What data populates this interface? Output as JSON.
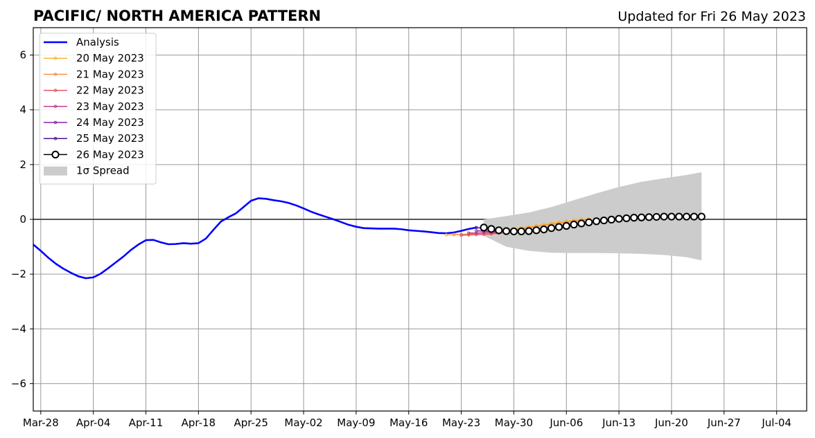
{
  "chart_data": {
    "type": "line",
    "title": "PACIFIC/ NORTH AMERICA PATTERN",
    "subtitle": "Updated for Fri 26 May 2023",
    "xlabel": "",
    "ylabel": "",
    "xlim": [
      "2023-03-27",
      "2023-07-08"
    ],
    "ylim": [
      -7,
      7
    ],
    "x_ticks": [
      "Mar-28",
      "Apr-04",
      "Apr-11",
      "Apr-18",
      "Apr-25",
      "May-02",
      "May-09",
      "May-16",
      "May-23",
      "May-30",
      "Jun-06",
      "Jun-13",
      "Jun-20",
      "Jun-27",
      "Jul-04"
    ],
    "y_ticks": [
      6,
      4,
      2,
      0,
      -2,
      -4,
      -6
    ],
    "y_tick_labels": [
      "6",
      "4",
      "2",
      "0",
      "−2",
      "−4",
      "−6"
    ],
    "grid": true,
    "legend_position": "upper-left",
    "colors": {
      "analysis": "#0000ff",
      "spread": "#cccccc",
      "grid": "#999999",
      "zero_line": "#555555"
    },
    "analysis": {
      "name": "Analysis",
      "x": [
        "2023-03-27",
        "2023-03-28",
        "2023-03-29",
        "2023-03-30",
        "2023-03-31",
        "2023-04-01",
        "2023-04-02",
        "2023-04-03",
        "2023-04-04",
        "2023-04-05",
        "2023-04-06",
        "2023-04-07",
        "2023-04-08",
        "2023-04-09",
        "2023-04-10",
        "2023-04-11",
        "2023-04-12",
        "2023-04-13",
        "2023-04-14",
        "2023-04-15",
        "2023-04-16",
        "2023-04-17",
        "2023-04-18",
        "2023-04-19",
        "2023-04-20",
        "2023-04-21",
        "2023-04-22",
        "2023-04-23",
        "2023-04-24",
        "2023-04-25",
        "2023-04-26",
        "2023-04-27",
        "2023-04-28",
        "2023-04-29",
        "2023-04-30",
        "2023-05-01",
        "2023-05-02",
        "2023-05-03",
        "2023-05-04",
        "2023-05-05",
        "2023-05-06",
        "2023-05-07",
        "2023-05-08",
        "2023-05-09",
        "2023-05-10",
        "2023-05-11",
        "2023-05-12",
        "2023-05-13",
        "2023-05-14",
        "2023-05-15",
        "2023-05-16",
        "2023-05-17",
        "2023-05-18",
        "2023-05-19",
        "2023-05-20",
        "2023-05-21",
        "2023-05-22",
        "2023-05-23",
        "2023-05-24",
        "2023-05-25"
      ],
      "y": [
        -0.92,
        -1.15,
        -1.4,
        -1.62,
        -1.8,
        -1.95,
        -2.08,
        -2.15,
        -2.12,
        -1.98,
        -1.78,
        -1.57,
        -1.36,
        -1.12,
        -0.92,
        -0.76,
        -0.75,
        -0.84,
        -0.91,
        -0.9,
        -0.87,
        -0.89,
        -0.87,
        -0.7,
        -0.38,
        -0.08,
        0.08,
        0.22,
        0.45,
        0.68,
        0.77,
        0.75,
        0.7,
        0.66,
        0.6,
        0.51,
        0.4,
        0.28,
        0.18,
        0.09,
        0.0,
        -0.1,
        -0.2,
        -0.27,
        -0.32,
        -0.33,
        -0.34,
        -0.34,
        -0.34,
        -0.36,
        -0.4,
        -0.42,
        -0.44,
        -0.47,
        -0.5,
        -0.51,
        -0.48,
        -0.42,
        -0.35,
        -0.3
      ]
    },
    "forecasts": [
      {
        "name": "20 May 2023",
        "color": "#f7b733",
        "start": "2023-05-21",
        "y": [
          -0.57,
          -0.56,
          -0.55,
          -0.53,
          -0.51,
          -0.48,
          -0.45,
          -0.42,
          -0.38,
          -0.35,
          -0.31,
          -0.27,
          -0.23,
          -0.19,
          -0.15,
          -0.1,
          -0.06,
          -0.03,
          0.0,
          0.02
        ]
      },
      {
        "name": "21 May 2023",
        "color": "#f4934d",
        "start": "2023-05-22",
        "y": [
          -0.55,
          -0.55,
          -0.54,
          -0.52,
          -0.5,
          -0.47,
          -0.44,
          -0.41,
          -0.38,
          -0.34,
          -0.3,
          -0.26,
          -0.22,
          -0.18,
          -0.14,
          -0.1,
          -0.06,
          -0.02,
          0.0
        ]
      },
      {
        "name": "22 May 2023",
        "color": "#e15462",
        "start": "2023-05-23",
        "y": [
          -0.58,
          -0.57,
          -0.56,
          -0.55,
          -0.53,
          -0.51,
          -0.49,
          -0.47
        ]
      },
      {
        "name": "23 May 2023",
        "color": "#c33b8b",
        "start": "2023-05-24",
        "y": [
          -0.5,
          -0.5,
          -0.49,
          -0.49,
          -0.48
        ]
      },
      {
        "name": "24 May 2023",
        "color": "#8a21a8",
        "start": "2023-05-25",
        "y": [
          -0.42,
          -0.43,
          -0.44,
          -0.44
        ]
      },
      {
        "name": "25 May 2023",
        "color": "#4a1096",
        "start": "2023-05-25",
        "y": [
          -0.3,
          -0.33,
          -0.36
        ]
      }
    ],
    "current_forecast": {
      "name": "26 May 2023",
      "color": "#000000",
      "x": [
        "2023-05-26",
        "2023-05-27",
        "2023-05-28",
        "2023-05-29",
        "2023-05-30",
        "2023-05-31",
        "2023-06-01",
        "2023-06-02",
        "2023-06-03",
        "2023-06-04",
        "2023-06-05",
        "2023-06-06",
        "2023-06-07",
        "2023-06-08",
        "2023-06-09",
        "2023-06-10",
        "2023-06-11",
        "2023-06-12",
        "2023-06-13",
        "2023-06-14",
        "2023-06-15",
        "2023-06-16",
        "2023-06-17",
        "2023-06-18",
        "2023-06-19",
        "2023-06-20",
        "2023-06-21",
        "2023-06-22",
        "2023-06-23",
        "2023-06-24"
      ],
      "y": [
        -0.3,
        -0.35,
        -0.4,
        -0.43,
        -0.44,
        -0.44,
        -0.43,
        -0.4,
        -0.37,
        -0.32,
        -0.28,
        -0.24,
        -0.19,
        -0.15,
        -0.11,
        -0.07,
        -0.04,
        -0.01,
        0.02,
        0.04,
        0.06,
        0.07,
        0.08,
        0.09,
        0.1,
        0.1,
        0.1,
        0.1,
        0.1,
        0.1
      ]
    },
    "spread": {
      "name": "1σ Spread",
      "x": [
        "2023-05-26",
        "2023-05-29",
        "2023-06-01",
        "2023-06-04",
        "2023-06-07",
        "2023-06-10",
        "2023-06-13",
        "2023-06-16",
        "2023-06-19",
        "2023-06-22",
        "2023-06-24"
      ],
      "upper": [
        0.0,
        0.12,
        0.25,
        0.45,
        0.7,
        0.95,
        1.18,
        1.37,
        1.5,
        1.62,
        1.72
      ],
      "lower": [
        -0.6,
        -1.0,
        -1.15,
        -1.22,
        -1.23,
        -1.23,
        -1.24,
        -1.26,
        -1.3,
        -1.38,
        -1.5
      ]
    }
  }
}
